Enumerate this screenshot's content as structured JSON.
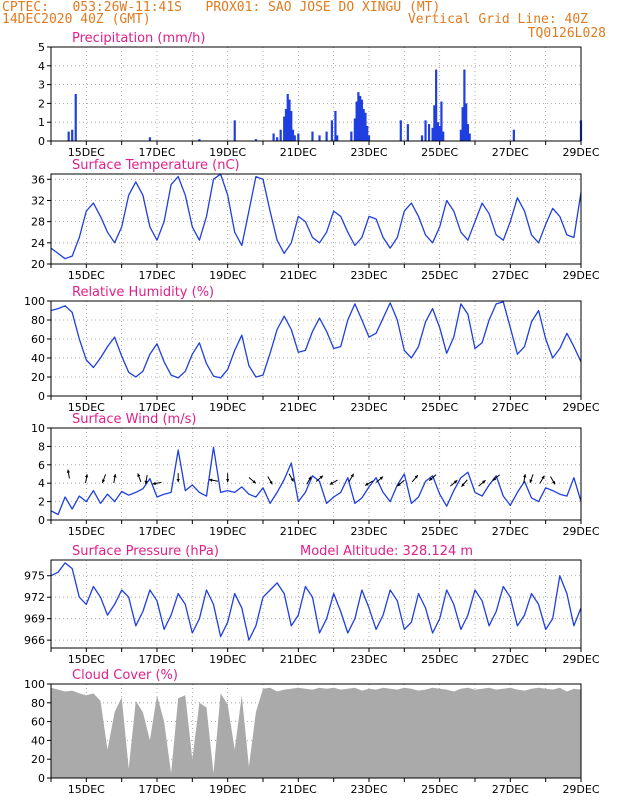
{
  "header": {
    "line1": "CPTEC:   053:26W-11:41S   PROX01: SAO JOSE DO XINGU (MT)",
    "date": "14DEC2020 40Z (GMT)",
    "vgrid": "Vertical Grid Line: 40Z",
    "code": "TQ0126L028"
  },
  "colors": {
    "header": "#e07b1f",
    "title": "#e0208a",
    "series": "#1f3fe0",
    "cloud": "#aaaaaa",
    "frame": "#000000",
    "grid": "#9a9a9a"
  },
  "x_labels": [
    "15DEC",
    "17DEC",
    "19DEC",
    "21DEC",
    "23DEC",
    "25DEC",
    "27DEC",
    "29DEC"
  ],
  "chart_data": [
    {
      "type": "bar",
      "title": "Precipitation (mm/h)",
      "ylim": [
        0,
        5
      ],
      "yticks": [
        0,
        1,
        2,
        3,
        4,
        5
      ],
      "x_range_days": [
        14.0,
        29.0
      ],
      "bars": [
        [
          14.5,
          0.5
        ],
        [
          14.6,
          0.6
        ],
        [
          14.7,
          2.5
        ],
        [
          16.8,
          0.2
        ],
        [
          18.2,
          0.1
        ],
        [
          19.2,
          1.1
        ],
        [
          19.8,
          0.1
        ],
        [
          20.3,
          0.4
        ],
        [
          20.4,
          0.2
        ],
        [
          20.5,
          0.6
        ],
        [
          20.6,
          1.3
        ],
        [
          20.65,
          1.7
        ],
        [
          20.7,
          2.5
        ],
        [
          20.75,
          2.2
        ],
        [
          20.8,
          1.6
        ],
        [
          20.85,
          0.6
        ],
        [
          20.9,
          0.3
        ],
        [
          21.0,
          0.4
        ],
        [
          21.4,
          0.5
        ],
        [
          21.6,
          0.3
        ],
        [
          21.8,
          0.5
        ],
        [
          21.95,
          1.1
        ],
        [
          22.05,
          1.6
        ],
        [
          22.1,
          0.3
        ],
        [
          22.5,
          0.5
        ],
        [
          22.6,
          1.2
        ],
        [
          22.65,
          2.1
        ],
        [
          22.7,
          2.6
        ],
        [
          22.75,
          2.4
        ],
        [
          22.8,
          2.2
        ],
        [
          22.85,
          1.7
        ],
        [
          22.9,
          1.5
        ],
        [
          22.95,
          0.8
        ],
        [
          23.0,
          0.3
        ],
        [
          23.9,
          1.1
        ],
        [
          24.1,
          0.9
        ],
        [
          24.5,
          0.3
        ],
        [
          24.6,
          1.1
        ],
        [
          24.7,
          0.9
        ],
        [
          24.8,
          0.7
        ],
        [
          24.85,
          1.9
        ],
        [
          24.9,
          3.8
        ],
        [
          24.95,
          1.0
        ],
        [
          25.0,
          0.8
        ],
        [
          25.05,
          2.1
        ],
        [
          25.1,
          0.5
        ],
        [
          25.6,
          0.6
        ],
        [
          25.65,
          1.8
        ],
        [
          25.7,
          3.8
        ],
        [
          25.75,
          2.0
        ],
        [
          25.8,
          0.9
        ],
        [
          25.85,
          0.4
        ],
        [
          27.1,
          0.6
        ],
        [
          29.0,
          1.1
        ]
      ]
    },
    {
      "type": "line",
      "title": "Surface Temperature (nC)",
      "ylim": [
        20,
        37
      ],
      "yticks": [
        20,
        24,
        28,
        32,
        36
      ],
      "x": [
        14.0,
        14.2,
        14.4,
        14.6,
        14.8,
        15.0,
        15.2,
        15.4,
        15.6,
        15.8,
        16.0,
        16.2,
        16.4,
        16.6,
        16.8,
        17.0,
        17.2,
        17.4,
        17.6,
        17.8,
        18.0,
        18.2,
        18.4,
        18.6,
        18.8,
        19.0,
        19.2,
        19.4,
        19.6,
        19.8,
        20.0,
        20.2,
        20.4,
        20.6,
        20.8,
        21.0,
        21.2,
        21.4,
        21.6,
        21.8,
        22.0,
        22.2,
        22.4,
        22.6,
        22.8,
        23.0,
        23.2,
        23.4,
        23.6,
        23.8,
        24.0,
        24.2,
        24.4,
        24.6,
        24.8,
        25.0,
        25.2,
        25.4,
        25.6,
        25.8,
        26.0,
        26.2,
        26.4,
        26.6,
        26.8,
        27.0,
        27.2,
        27.4,
        27.6,
        27.8,
        28.0,
        28.2,
        28.4,
        28.6,
        28.8,
        29.0
      ],
      "values": [
        23.0,
        22.0,
        21.0,
        21.5,
        25.0,
        30.0,
        31.5,
        29.0,
        26.0,
        24.0,
        27.0,
        33.0,
        35.5,
        33.0,
        27.0,
        24.5,
        28.0,
        35.0,
        36.5,
        33.0,
        27.0,
        24.5,
        29.0,
        36.0,
        37.0,
        33.0,
        26.0,
        23.5,
        30.0,
        36.5,
        36.0,
        30.0,
        24.5,
        22.0,
        24.0,
        29.0,
        28.0,
        25.0,
        24.0,
        26.0,
        30.0,
        29.0,
        26.0,
        23.5,
        25.0,
        29.0,
        28.5,
        25.0,
        23.0,
        25.0,
        30.0,
        31.5,
        29.0,
        25.5,
        24.0,
        27.0,
        32.0,
        30.0,
        26.0,
        24.5,
        28.0,
        31.5,
        29.5,
        25.5,
        24.5,
        28.0,
        32.5,
        30.0,
        25.5,
        24.0,
        27.5,
        30.5,
        29.0,
        25.5,
        25.0,
        33.5
      ]
    },
    {
      "type": "line",
      "title": "Relative Humidity (%)",
      "ylim": [
        0,
        100
      ],
      "yticks": [
        0,
        20,
        40,
        60,
        80,
        100
      ],
      "x": [
        14.0,
        14.2,
        14.4,
        14.6,
        14.8,
        15.0,
        15.2,
        15.4,
        15.6,
        15.8,
        16.0,
        16.2,
        16.4,
        16.6,
        16.8,
        17.0,
        17.2,
        17.4,
        17.6,
        17.8,
        18.0,
        18.2,
        18.4,
        18.6,
        18.8,
        19.0,
        19.2,
        19.4,
        19.6,
        19.8,
        20.0,
        20.2,
        20.4,
        20.6,
        20.8,
        21.0,
        21.2,
        21.4,
        21.6,
        21.8,
        22.0,
        22.2,
        22.4,
        22.6,
        22.8,
        23.0,
        23.2,
        23.4,
        23.6,
        23.8,
        24.0,
        24.2,
        24.4,
        24.6,
        24.8,
        25.0,
        25.2,
        25.4,
        25.6,
        25.8,
        26.0,
        26.2,
        26.4,
        26.6,
        26.8,
        27.0,
        27.2,
        27.4,
        27.6,
        27.8,
        28.0,
        28.2,
        28.4,
        28.6,
        28.8,
        29.0
      ],
      "values": [
        90.0,
        92.0,
        95.0,
        88.0,
        60.0,
        38.0,
        30.0,
        40.0,
        52.0,
        62.0,
        42.0,
        25.0,
        20.0,
        26.0,
        44.0,
        55.0,
        36.0,
        22.0,
        19.0,
        26.0,
        44.0,
        56.0,
        34.0,
        21.0,
        19.0,
        28.0,
        48.0,
        64.0,
        32.0,
        20.0,
        22.0,
        45.0,
        70.0,
        84.0,
        70.0,
        46.0,
        48.0,
        68.0,
        82.0,
        68.0,
        50.0,
        52.0,
        80.0,
        97.0,
        80.0,
        62.0,
        66.0,
        82.0,
        98.0,
        80.0,
        48.0,
        40.0,
        52.0,
        78.0,
        92.0,
        72.0,
        45.0,
        62.0,
        97.0,
        86.0,
        50.0,
        56.0,
        80.0,
        97.0,
        99.0,
        72.0,
        44.0,
        52.0,
        78.0,
        90.0,
        60.0,
        40.0,
        50.0,
        66.0,
        52.0,
        36.0
      ]
    },
    {
      "type": "line",
      "title": "Surface Wind (m/s)",
      "ylim": [
        0,
        10
      ],
      "yticks": [
        0,
        2,
        4,
        6,
        8,
        10
      ],
      "x": [
        14.0,
        14.2,
        14.4,
        14.6,
        14.8,
        15.0,
        15.2,
        15.4,
        15.6,
        15.8,
        16.0,
        16.2,
        16.4,
        16.6,
        16.8,
        17.0,
        17.2,
        17.4,
        17.6,
        17.8,
        18.0,
        18.2,
        18.4,
        18.6,
        18.8,
        19.0,
        19.2,
        19.4,
        19.6,
        19.8,
        20.0,
        20.2,
        20.4,
        20.6,
        20.8,
        21.0,
        21.2,
        21.4,
        21.6,
        21.8,
        22.0,
        22.2,
        22.4,
        22.6,
        22.8,
        23.0,
        23.2,
        23.4,
        23.6,
        23.8,
        24.0,
        24.2,
        24.4,
        24.6,
        24.8,
        25.0,
        25.2,
        25.4,
        25.6,
        25.8,
        26.0,
        26.2,
        26.4,
        26.6,
        26.8,
        27.0,
        27.2,
        27.4,
        27.6,
        27.8,
        28.0,
        28.2,
        28.4,
        28.6,
        28.8,
        29.0
      ],
      "values": [
        1.0,
        0.6,
        2.5,
        1.2,
        2.6,
        2.0,
        3.2,
        1.8,
        2.8,
        2.0,
        3.1,
        2.7,
        3.0,
        3.4,
        4.5,
        2.5,
        2.8,
        3.0,
        7.6,
        3.2,
        3.8,
        3.0,
        2.6,
        7.9,
        3.0,
        3.2,
        3.0,
        3.6,
        2.8,
        2.5,
        3.5,
        1.8,
        3.0,
        4.4,
        6.2,
        2.0,
        3.0,
        4.8,
        4.2,
        1.8,
        2.5,
        3.0,
        4.6,
        1.8,
        2.4,
        3.6,
        4.6,
        3.0,
        2.0,
        3.8,
        5.0,
        1.8,
        2.5,
        4.2,
        4.8,
        2.8,
        1.5,
        3.2,
        4.6,
        5.2,
        3.0,
        2.6,
        3.8,
        4.8,
        2.6,
        1.6,
        3.0,
        4.2,
        2.4,
        2.0,
        3.5,
        3.2,
        2.8,
        2.6,
        4.6,
        2.0
      ],
      "arrows": [
        [
          14.5,
          5.0,
          100
        ],
        [
          15.0,
          4.5,
          80
        ],
        [
          15.5,
          4.5,
          250
        ],
        [
          15.8,
          4.5,
          80
        ],
        [
          16.5,
          4.6,
          110
        ],
        [
          16.7,
          4.4,
          260
        ],
        [
          17.0,
          4.0,
          190
        ],
        [
          17.6,
          4.6,
          270
        ],
        [
          18.6,
          4.3,
          170
        ],
        [
          19.0,
          4.6,
          270
        ],
        [
          19.7,
          4.3,
          320
        ],
        [
          20.2,
          4.3,
          300
        ],
        [
          20.8,
          4.6,
          300
        ],
        [
          21.3,
          4.3,
          60
        ],
        [
          21.6,
          4.5,
          40
        ],
        [
          22.0,
          4.1,
          210
        ],
        [
          22.5,
          4.6,
          60
        ],
        [
          23.0,
          4.0,
          210
        ],
        [
          23.3,
          4.4,
          40
        ],
        [
          23.9,
          4.0,
          220
        ],
        [
          24.3,
          4.5,
          50
        ],
        [
          24.8,
          4.6,
          220
        ],
        [
          25.4,
          4.0,
          40
        ],
        [
          25.7,
          4.0,
          230
        ],
        [
          26.2,
          4.0,
          40
        ],
        [
          26.6,
          4.6,
          220
        ],
        [
          27.4,
          4.5,
          80
        ],
        [
          27.6,
          4.5,
          250
        ],
        [
          27.9,
          4.4,
          60
        ],
        [
          28.2,
          4.3,
          300
        ]
      ]
    },
    {
      "type": "line",
      "title": "Surface Pressure (hPa)",
      "annotation": "Model Altitude: 328.124 m",
      "ylim": [
        964.9,
        977.2
      ],
      "yticks": [
        966,
        969,
        972,
        975
      ],
      "x": [
        14.0,
        14.2,
        14.4,
        14.6,
        14.8,
        15.0,
        15.2,
        15.4,
        15.6,
        15.8,
        16.0,
        16.2,
        16.4,
        16.6,
        16.8,
        17.0,
        17.2,
        17.4,
        17.6,
        17.8,
        18.0,
        18.2,
        18.4,
        18.6,
        18.8,
        19.0,
        19.2,
        19.4,
        19.6,
        19.8,
        20.0,
        20.2,
        20.4,
        20.6,
        20.8,
        21.0,
        21.2,
        21.4,
        21.6,
        21.8,
        22.0,
        22.2,
        22.4,
        22.6,
        22.8,
        23.0,
        23.2,
        23.4,
        23.6,
        23.8,
        24.0,
        24.2,
        24.4,
        24.6,
        24.8,
        25.0,
        25.2,
        25.4,
        25.6,
        25.8,
        26.0,
        26.2,
        26.4,
        26.6,
        26.8,
        27.0,
        27.2,
        27.4,
        27.6,
        27.8,
        28.0,
        28.2,
        28.4,
        28.6,
        28.8,
        29.0
      ],
      "values": [
        975.0,
        975.5,
        976.8,
        976.0,
        972.0,
        971.0,
        973.5,
        972.0,
        969.5,
        971.0,
        973.0,
        972.0,
        968.0,
        970.0,
        973.0,
        971.5,
        967.5,
        969.5,
        972.5,
        971.0,
        967.0,
        969.0,
        973.0,
        971.0,
        966.5,
        968.5,
        972.5,
        970.5,
        966.0,
        968.0,
        972.0,
        973.0,
        974.0,
        972.5,
        968.0,
        969.5,
        973.5,
        972.0,
        967.0,
        969.0,
        972.5,
        970.0,
        967.0,
        969.0,
        973.0,
        970.5,
        967.5,
        969.5,
        973.0,
        971.5,
        967.5,
        968.5,
        972.5,
        970.5,
        967.0,
        969.0,
        973.0,
        971.0,
        967.5,
        969.5,
        973.0,
        971.5,
        968.0,
        970.0,
        973.5,
        972.0,
        968.0,
        969.5,
        972.5,
        971.0,
        967.5,
        969.0,
        975.0,
        972.5,
        968.0,
        970.5
      ]
    },
    {
      "type": "area",
      "title": "Cloud Cover (%)",
      "ylim": [
        0,
        100
      ],
      "yticks": [
        0,
        20,
        40,
        60,
        80,
        100
      ],
      "x": [
        14.0,
        14.2,
        14.4,
        14.6,
        14.8,
        15.0,
        15.2,
        15.4,
        15.6,
        15.8,
        16.0,
        16.2,
        16.4,
        16.6,
        16.8,
        17.0,
        17.2,
        17.4,
        17.6,
        17.8,
        18.0,
        18.2,
        18.4,
        18.6,
        18.8,
        19.0,
        19.2,
        19.4,
        19.6,
        19.8,
        20.0,
        20.2,
        20.4,
        20.6,
        20.8,
        21.0,
        21.2,
        21.4,
        21.6,
        21.8,
        22.0,
        22.2,
        22.4,
        22.6,
        22.8,
        23.0,
        23.2,
        23.4,
        23.6,
        23.8,
        24.0,
        24.2,
        24.4,
        24.6,
        24.8,
        25.0,
        25.2,
        25.4,
        25.6,
        25.8,
        26.0,
        26.2,
        26.4,
        26.6,
        26.8,
        27.0,
        27.2,
        27.4,
        27.6,
        27.8,
        28.0,
        28.2,
        28.4,
        28.6,
        28.8,
        29.0
      ],
      "values": [
        96,
        94,
        92,
        93,
        90,
        88,
        90,
        82,
        30,
        70,
        86,
        10,
        82,
        70,
        40,
        88,
        60,
        5,
        85,
        88,
        20,
        80,
        75,
        5,
        90,
        78,
        30,
        88,
        12,
        70,
        95,
        96,
        92,
        94,
        95,
        96,
        95,
        94,
        96,
        95,
        96,
        94,
        95,
        96,
        93,
        95,
        94,
        96,
        95,
        94,
        96,
        95,
        93,
        94,
        96,
        95,
        94,
        92,
        95,
        96,
        94,
        95,
        96,
        94,
        95,
        96,
        94,
        93,
        95,
        96,
        95,
        94,
        96,
        92,
        95,
        94
      ]
    }
  ]
}
